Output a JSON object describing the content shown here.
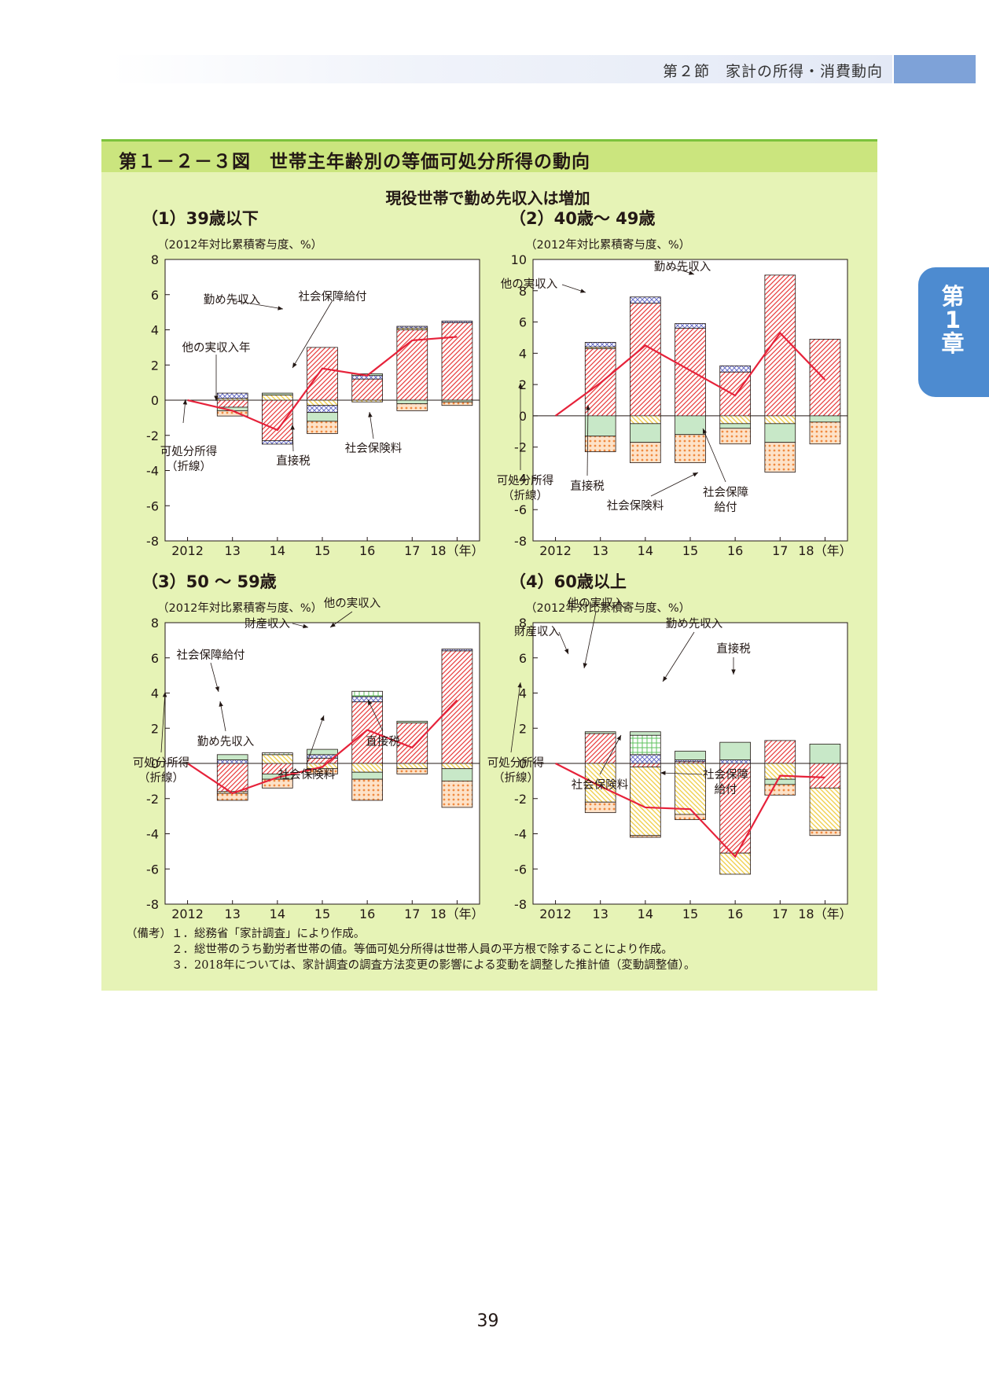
{
  "header": {
    "section": "第２節　家計の所得・消費動向"
  },
  "chapter_tab": {
    "label": "第1章"
  },
  "figure": {
    "title": "第１－２－３図　世帯主年齢別の等価可処分所得の動向",
    "subtitle": "現役世帯で勤め先収入は増加"
  },
  "colors": {
    "kinme": "#e83c3c",
    "social_benefit": "#f0d050",
    "other": "#6a70c8",
    "property": "#5ec25e",
    "direct_tax": "#c8e8c8",
    "social_ins": "#f08a40",
    "line": "#e6223a"
  },
  "chart_data": [
    {
      "type": "bar",
      "title": "（1）39歳以下",
      "ylabel": "（2012年対比累積寄与度、%）",
      "ylim": [
        -8,
        8
      ],
      "yticks": [
        "8",
        "6",
        "4",
        "2",
        "0",
        "-2",
        "-4",
        "-6",
        "-8"
      ],
      "x": [
        "2012",
        "13",
        "14",
        "15",
        "16",
        "17",
        "18（年）"
      ],
      "series": [
        {
          "name": "勤め先収入",
          "values": [
            0,
            -0.4,
            -2.3,
            3.0,
            1.2,
            4.0,
            4.4
          ]
        },
        {
          "name": "社会保障給付",
          "values": [
            0,
            0.1,
            0.3,
            -0.3,
            -0.1,
            0.1,
            0.0
          ]
        },
        {
          "name": "他の実収入",
          "values": [
            0,
            0.3,
            -0.2,
            -0.4,
            0.2,
            0.1,
            0.1
          ]
        },
        {
          "name": "財産収入",
          "values": [
            0,
            0,
            0,
            0,
            0,
            0,
            0
          ]
        },
        {
          "name": "直接税",
          "values": [
            0,
            -0.2,
            0.1,
            -0.5,
            0.1,
            -0.2,
            -0.1
          ]
        },
        {
          "name": "社会保険料",
          "values": [
            0,
            -0.3,
            0.0,
            -0.7,
            0.0,
            -0.4,
            -0.2
          ]
        }
      ],
      "line": {
        "name": "可処分所得（折線）",
        "values": [
          0,
          -0.6,
          -1.7,
          1.8,
          1.4,
          3.4,
          3.6
        ]
      },
      "annotations": [
        "勤め先収入",
        "社会保障給付",
        "他の実収入年",
        "可処分所得",
        "（折線）",
        "直接税",
        "社会保険料"
      ]
    },
    {
      "type": "bar",
      "title": "（2）40歳～ 49歳",
      "ylabel": "（2012年対比累積寄与度、%）",
      "ylim": [
        -8,
        10
      ],
      "yticks": [
        "10",
        "8",
        "6",
        "4",
        "2",
        "0",
        "-2",
        "-4",
        "-6",
        "-8"
      ],
      "x": [
        "2012",
        "13",
        "14",
        "15",
        "16",
        "17",
        "18（年）"
      ],
      "series": [
        {
          "name": "勤め先収入",
          "values": [
            0,
            4.3,
            7.2,
            5.6,
            2.8,
            9.0,
            4.9
          ]
        },
        {
          "name": "社会保障給付",
          "values": [
            0,
            0.1,
            -0.5,
            0.0,
            -0.5,
            -0.5,
            0.0
          ]
        },
        {
          "name": "他の実収入",
          "values": [
            0,
            0.3,
            0.4,
            0.3,
            0.4,
            0.0,
            0.0
          ]
        },
        {
          "name": "財産収入",
          "values": [
            0,
            0,
            0,
            0,
            0,
            0,
            0
          ]
        },
        {
          "name": "直接税",
          "values": [
            0,
            -1.3,
            -1.2,
            -1.2,
            -0.3,
            -1.2,
            -0.4
          ]
        },
        {
          "name": "社会保険料",
          "values": [
            0,
            -1.0,
            -1.3,
            -1.8,
            -1.0,
            -1.9,
            -1.4
          ]
        }
      ],
      "line": {
        "name": "可処分所得（折線）",
        "values": [
          0,
          2.1,
          4.5,
          2.9,
          1.3,
          5.3,
          2.3
        ]
      },
      "annotations": [
        "勤め先収入",
        "他の実収入",
        "可処分所得",
        "（折線）",
        "直接税",
        "社会保険料",
        "社会保障",
        "給付"
      ]
    },
    {
      "type": "bar",
      "title": "（3）50 ～ 59歳",
      "ylabel": "（2012年対比累積寄与度、%）",
      "ylim": [
        -8,
        8
      ],
      "yticks": [
        "8",
        "6",
        "4",
        "2",
        "0",
        "-2",
        "-4",
        "-6",
        "-8"
      ],
      "x": [
        "2012",
        "13",
        "14",
        "15",
        "16",
        "17",
        "18（年）"
      ],
      "series": [
        {
          "name": "勤め先収入",
          "values": [
            0,
            -1.6,
            -0.6,
            0.3,
            3.5,
            2.3,
            6.4
          ]
        },
        {
          "name": "社会保障給付",
          "values": [
            0,
            -0.1,
            0.5,
            -0.3,
            -0.5,
            -0.3,
            -0.3
          ]
        },
        {
          "name": "他の実収入",
          "values": [
            0,
            0.2,
            0.0,
            0.2,
            0.3,
            0.0,
            0.1
          ]
        },
        {
          "name": "財産収入",
          "values": [
            0,
            0,
            0.1,
            0,
            0.3,
            0,
            0
          ]
        },
        {
          "name": "直接税",
          "values": [
            0,
            0.3,
            -0.3,
            0.3,
            -0.4,
            0.1,
            -0.7
          ]
        },
        {
          "name": "社会保険料",
          "values": [
            0,
            -0.4,
            -0.5,
            -0.3,
            -1.2,
            -0.3,
            -1.5
          ]
        }
      ],
      "line": {
        "name": "可処分所得（折線）",
        "values": [
          0,
          -1.7,
          -0.8,
          -0.2,
          1.9,
          0.9,
          3.6
        ]
      },
      "annotations": [
        "他の実収入",
        "財産収入",
        "社会保障給付",
        "勤め先収入",
        "直接税",
        "可処分所得",
        "（折線）",
        "社会保険料"
      ]
    },
    {
      "type": "bar",
      "title": "（4）60歳以上",
      "ylabel": "（2012年対比累積寄与度、%）",
      "ylim": [
        -8,
        8
      ],
      "yticks": [
        "8",
        "6",
        "4",
        "2",
        "0",
        "-2",
        "-4",
        "-6",
        "-8"
      ],
      "x": [
        "2012",
        "13",
        "14",
        "15",
        "16",
        "17",
        "18（年）"
      ],
      "series": [
        {
          "name": "勤め先収入",
          "values": [
            0,
            1.7,
            -0.2,
            0.1,
            -5.1,
            1.3,
            -1.4
          ]
        },
        {
          "name": "社会保障給付",
          "values": [
            0,
            -2.2,
            -3.9,
            -2.9,
            -1.2,
            -0.9,
            -2.4
          ]
        },
        {
          "name": "他の実収入",
          "values": [
            0,
            0,
            0.5,
            0.1,
            0.2,
            0,
            0
          ]
        },
        {
          "name": "財産収入",
          "values": [
            0,
            0,
            1.1,
            0,
            0,
            0,
            0
          ]
        },
        {
          "name": "直接税",
          "values": [
            0,
            0.1,
            0.2,
            0.5,
            1.0,
            -0.3,
            1.1
          ]
        },
        {
          "name": "社会保険料",
          "values": [
            0,
            -0.6,
            -0.1,
            -0.3,
            0,
            -0.6,
            -0.3
          ]
        }
      ],
      "line": {
        "name": "可処分所得（折線）",
        "values": [
          0,
          -1.3,
          -2.5,
          -2.6,
          -5.3,
          -0.7,
          -0.8
        ]
      },
      "annotations": [
        "他の実収入",
        "財産収入",
        "勤め先収入",
        "直接税",
        "可処分所得",
        "（折線）",
        "社会保険料",
        "社会保障",
        "給付"
      ]
    }
  ],
  "notes": [
    "（備考）１．総務省「家計調査」により作成。",
    "　　　　２．総世帯のうち勤労者世帯の値。等価可処分所得は世帯人員の平方根で除することにより作成。",
    "　　　　３．2018年については、家計調査の調査方法変更の影響による変動を調整した推計値（変動調整値）。"
  ],
  "page_number": "39"
}
